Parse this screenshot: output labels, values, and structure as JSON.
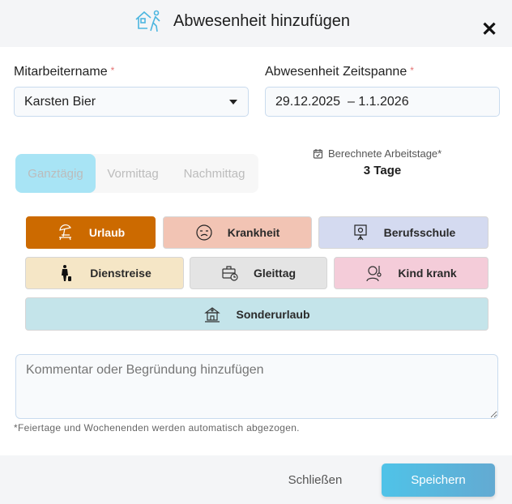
{
  "header": {
    "title": "Abwesenheit hinzufügen",
    "icon": "house-walking-person-icon",
    "close_icon": "close-icon"
  },
  "form": {
    "employee": {
      "label": "Mitarbeitername",
      "required": "*",
      "value": "Karsten Bier"
    },
    "period": {
      "label": "Abwesenheit Zeitspanne",
      "required": "*",
      "value": "29.12.2025  – 1.1.2026"
    },
    "day_part": {
      "options": [
        "Ganztägig",
        "Vormittag",
        "Nachmittag"
      ],
      "selected": "Ganztägig"
    },
    "workdays": {
      "label": "Berechnete Arbeitstage*",
      "value": "3 Tage"
    },
    "types": [
      {
        "label": "Urlaub",
        "icon": "beach-umbrella-icon",
        "color": "#cc6a00",
        "selected": true
      },
      {
        "label": "Krankheit",
        "icon": "sick-face-icon",
        "color": "#f2c4b4"
      },
      {
        "label": "Berufsschule",
        "icon": "presentation-board-icon",
        "color": "#d4daf0"
      },
      {
        "label": "Dienstreise",
        "icon": "business-traveler-icon",
        "color": "#f5e6c6"
      },
      {
        "label": "Gleittag",
        "icon": "briefcase-clock-icon",
        "color": "#e4e4e4"
      },
      {
        "label": "Kind krank",
        "icon": "child-thermometer-icon",
        "color": "#f4ccd9"
      },
      {
        "label": "Sonderurlaub",
        "icon": "building-icon",
        "color": "#c4e4ea"
      }
    ],
    "comment": {
      "placeholder": "Kommentar oder Begründung hinzufügen"
    },
    "note": "*Feiertage und Wochenenden werden automatisch abgezogen."
  },
  "footer": {
    "close_label": "Schließen",
    "save_label": "Speichern",
    "save_color": "#4fc3e8"
  }
}
